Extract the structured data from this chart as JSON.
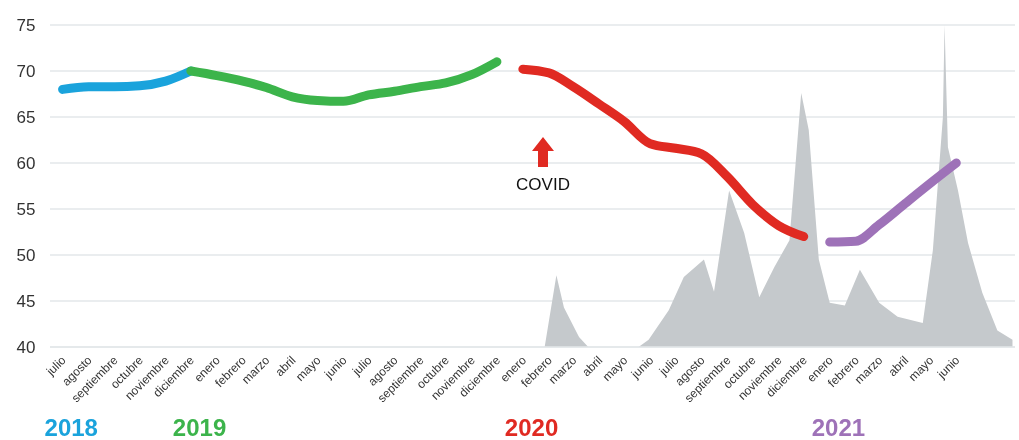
{
  "chart_data": {
    "type": "line",
    "xlim": [
      "2018-06-16",
      "2021-08-10"
    ],
    "ylim": [
      40,
      75
    ],
    "yticks": [
      40,
      45,
      50,
      55,
      60,
      65,
      70,
      75
    ],
    "xticks": [
      {
        "value": "2018-07",
        "label": "julio"
      },
      {
        "value": "2018-08",
        "label": "agosto"
      },
      {
        "value": "2018-09",
        "label": "septiembre"
      },
      {
        "value": "2018-10",
        "label": "octubre"
      },
      {
        "value": "2018-11",
        "label": "noviembre"
      },
      {
        "value": "2018-12",
        "label": "diciembre"
      },
      {
        "value": "2019-01",
        "label": "enero"
      },
      {
        "value": "2019-02",
        "label": "febrero"
      },
      {
        "value": "2019-03",
        "label": "marzo"
      },
      {
        "value": "2019-04",
        "label": "abril"
      },
      {
        "value": "2019-05",
        "label": "mayo"
      },
      {
        "value": "2019-06",
        "label": "junio"
      },
      {
        "value": "2019-07",
        "label": "julio"
      },
      {
        "value": "2019-08",
        "label": "agosto"
      },
      {
        "value": "2019-09",
        "label": "septiembre"
      },
      {
        "value": "2019-10",
        "label": "octubre"
      },
      {
        "value": "2019-11",
        "label": "noviembre"
      },
      {
        "value": "2019-12",
        "label": "diciembre"
      },
      {
        "value": "2020-01",
        "label": "enero"
      },
      {
        "value": "2020-02",
        "label": "febrero"
      },
      {
        "value": "2020-03",
        "label": "marzo"
      },
      {
        "value": "2020-04",
        "label": "abril"
      },
      {
        "value": "2020-05",
        "label": "mayo"
      },
      {
        "value": "2020-06",
        "label": "junio"
      },
      {
        "value": "2020-07",
        "label": "julio"
      },
      {
        "value": "2020-08",
        "label": "agosto"
      },
      {
        "value": "2020-09",
        "label": "septiembre"
      },
      {
        "value": "2020-10",
        "label": "octubre"
      },
      {
        "value": "2020-11",
        "label": "noviembre"
      },
      {
        "value": "2020-12",
        "label": "diciembre"
      },
      {
        "value": "2021-01",
        "label": "enero"
      },
      {
        "value": "2021-02",
        "label": "febrero"
      },
      {
        "value": "2021-03",
        "label": "marzo"
      },
      {
        "value": "2021-04",
        "label": "abril"
      },
      {
        "value": "2021-05",
        "label": "mayo"
      },
      {
        "value": "2021-06",
        "label": "junio"
      }
    ],
    "grid": "y",
    "legend": "bottom",
    "line_style": "solid",
    "annotations": [
      "COVID"
    ],
    "series": [
      {
        "type": "area",
        "color": "#c5c9cc",
        "x": [
          "2020-01-27",
          "2020-02-10",
          "2020-02-19",
          "2020-03-08",
          "2020-03-19",
          "2020-05-18",
          "2020-05-30",
          "2020-06-23",
          "2020-07-11",
          "2020-08-04",
          "2020-08-16",
          "2020-09-03",
          "2020-09-21",
          "2020-10-09",
          "2020-10-27",
          "2020-11-14",
          "2020-11-28",
          "2020-12-07",
          "2020-12-19",
          "2021-01-01",
          "2021-01-19",
          "2021-02-06",
          "2021-03-01",
          "2021-03-23",
          "2021-04-22",
          "2021-05-04",
          "2021-05-16",
          "2021-05-18",
          "2021-05-22",
          "2021-06-03",
          "2021-06-15",
          "2021-07-02",
          "2021-07-20",
          "2021-08-07"
        ],
        "values": [
          40,
          47.8,
          44.3,
          41.1,
          40,
          40,
          40.8,
          44,
          47.6,
          49.5,
          46,
          57,
          52.4,
          45.4,
          48.7,
          51.6,
          67.6,
          63.6,
          49.5,
          44.8,
          44.5,
          48.4,
          44.8,
          43.3,
          42.6,
          50.5,
          65,
          75,
          61.7,
          57,
          51.3,
          45.9,
          41.8,
          40.8
        ]
      },
      {
        "name": "2018",
        "color": "#1aa3dc",
        "x": [
          "2018-07",
          "2018-08",
          "2018-09",
          "2018-10",
          "2018-11",
          "2018-12"
        ],
        "values": [
          68,
          68.3,
          68.3,
          68.4,
          68.9,
          70
        ]
      },
      {
        "name": "2019",
        "color": "#3cb44b",
        "x": [
          "2018-12",
          "2019-01",
          "2019-02",
          "2019-03",
          "2019-04",
          "2019-05",
          "2019-06",
          "2019-07",
          "2019-08",
          "2019-09",
          "2019-10",
          "2019-11",
          "2019-12"
        ],
        "values": [
          70,
          69.5,
          68.9,
          68.2,
          67.2,
          66.8,
          66.7,
          67.4,
          67.8,
          68.3,
          68.7,
          69.6,
          71
        ]
      },
      {
        "name": "2020",
        "color": "#e02a22",
        "x": [
          "2020-01",
          "2020-02",
          "2020-03",
          "2020-04",
          "2020-05",
          "2020-06",
          "2020-07",
          "2020-08",
          "2020-09",
          "2020-10",
          "2020-11",
          "2020-12"
        ],
        "values": [
          70.2,
          69.8,
          68.3,
          66.4,
          64.5,
          62.1,
          61.6,
          61,
          58.5,
          55.5,
          53.2,
          52
        ]
      },
      {
        "name": "2021",
        "color": "#9e72b8",
        "x": [
          "2021-01",
          "2021-02",
          "2021-03",
          "2021-04",
          "2021-05",
          "2021-06"
        ],
        "values": [
          51.4,
          51.5,
          53.3,
          55.6,
          57.8,
          60
        ]
      }
    ]
  }
}
